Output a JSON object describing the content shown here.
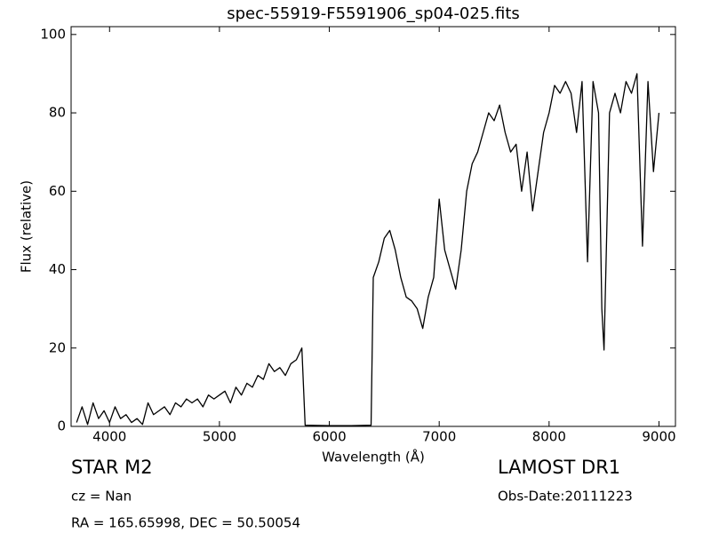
{
  "chart_data": {
    "type": "line",
    "title": "spec-55919-F5591906_sp04-025.fits",
    "xlabel": "Wavelength (Å)",
    "ylabel": "Flux (relative)",
    "annotations": [
      "STAR   M2",
      "cz = Nan",
      "RA = 165.65998, DEC = 50.50054",
      "LAMOST DR1",
      "Obs-Date:20111223"
    ],
    "xlim": [
      3650,
      9150
    ],
    "ylim": [
      0,
      102
    ],
    "xticks": [
      4000,
      5000,
      6000,
      7000,
      8000,
      9000
    ],
    "yticks": [
      0,
      20,
      40,
      60,
      80,
      100
    ],
    "series": [
      {
        "color": "#000000",
        "x": [
          3700,
          3750,
          3800,
          3850,
          3900,
          3950,
          4000,
          4050,
          4100,
          4150,
          4200,
          4250,
          4300,
          4350,
          4400,
          4450,
          4500,
          4550,
          4600,
          4650,
          4700,
          4750,
          4800,
          4850,
          4900,
          4950,
          5000,
          5050,
          5100,
          5150,
          5200,
          5250,
          5300,
          5350,
          5400,
          5450,
          5500,
          5550,
          5600,
          5650,
          5700,
          5750,
          5780,
          6000,
          6200,
          6380,
          6400,
          6450,
          6500,
          6550,
          6600,
          6650,
          6700,
          6750,
          6800,
          6850,
          6900,
          6950,
          7000,
          7050,
          7100,
          7150,
          7200,
          7250,
          7300,
          7350,
          7400,
          7450,
          7500,
          7550,
          7600,
          7650,
          7700,
          7750,
          7800,
          7850,
          7900,
          7950,
          8000,
          8050,
          8100,
          8150,
          8200,
          8250,
          8300,
          8350,
          8400,
          8450,
          8480,
          8500,
          8550,
          8600,
          8650,
          8700,
          8750,
          8800,
          8850,
          8900,
          8950,
          9000
        ],
        "values": [
          1,
          5,
          0.5,
          6,
          2,
          4,
          1,
          5,
          2,
          3,
          1,
          2,
          0.5,
          6,
          3,
          4,
          5,
          3,
          6,
          5,
          7,
          6,
          7,
          5,
          8,
          7,
          8,
          9,
          6,
          10,
          8,
          11,
          10,
          13,
          12,
          16,
          14,
          15,
          13,
          16,
          17,
          20,
          0.3,
          0.2,
          0.2,
          0.3,
          38,
          42,
          48,
          50,
          45,
          38,
          33,
          32,
          30,
          25,
          33,
          38,
          58,
          45,
          40,
          35,
          45,
          60,
          67,
          70,
          75,
          80,
          78,
          82,
          75,
          70,
          72,
          60,
          70,
          55,
          65,
          75,
          80,
          87,
          85,
          88,
          85,
          75,
          88,
          42,
          88,
          80,
          30,
          19.5,
          80,
          85,
          80,
          88,
          85,
          90,
          46,
          88,
          65,
          80
        ]
      }
    ]
  }
}
